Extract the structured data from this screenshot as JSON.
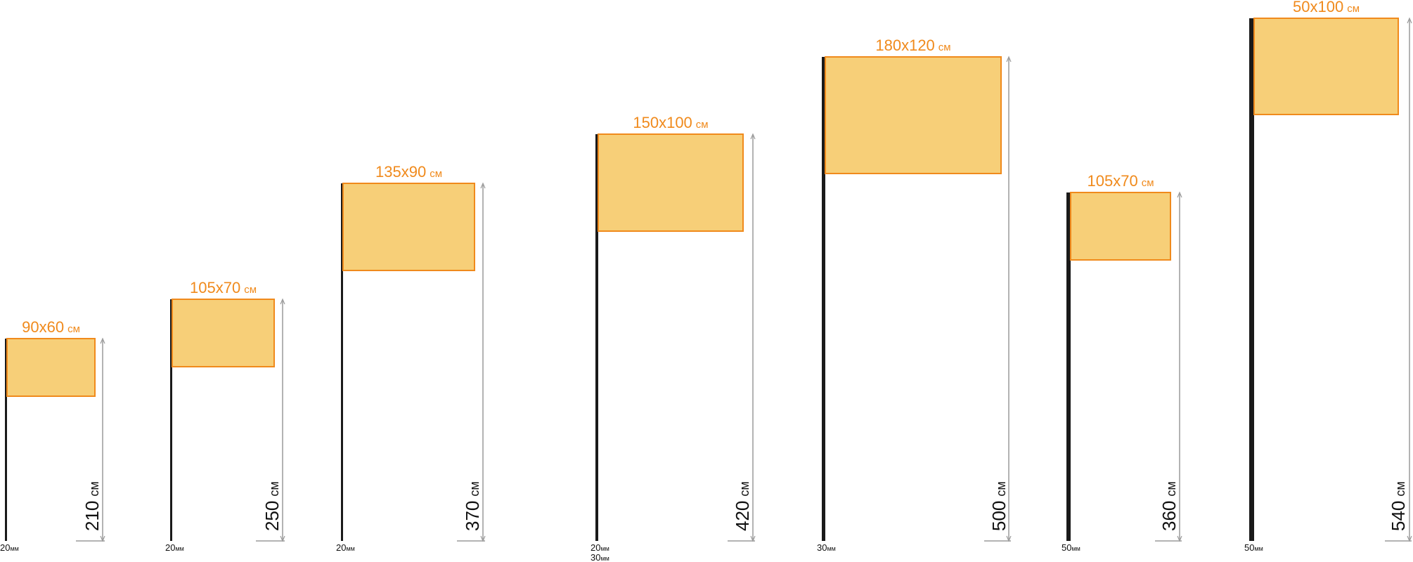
{
  "flags": [
    {
      "size": "90x60",
      "size_unit": "см",
      "height": "210",
      "height_unit": "см",
      "pole_diameter": [
        "20"
      ],
      "diameter_unit": "мм"
    },
    {
      "size": "105x70",
      "size_unit": "см",
      "height": "250",
      "height_unit": "см",
      "pole_diameter": [
        "20"
      ],
      "diameter_unit": "мм"
    },
    {
      "size": "135x90",
      "size_unit": "см",
      "height": "370",
      "height_unit": "см",
      "pole_diameter": [
        "20"
      ],
      "diameter_unit": "мм"
    },
    {
      "size": "150x100",
      "size_unit": "см",
      "height": "420",
      "height_unit": "см",
      "pole_diameter": [
        "20",
        "30"
      ],
      "diameter_unit": "мм"
    },
    {
      "size": "180x120",
      "size_unit": "см",
      "height": "500",
      "height_unit": "см",
      "pole_diameter": [
        "30"
      ],
      "diameter_unit": "мм"
    },
    {
      "size": "105x70",
      "size_unit": "см",
      "height": "360",
      "height_unit": "см",
      "pole_diameter": [
        "50"
      ],
      "diameter_unit": "мм"
    },
    {
      "size": "50x100",
      "size_unit": "см",
      "height": "540",
      "height_unit": "см",
      "pole_diameter": [
        "50"
      ],
      "diameter_unit": "мм"
    }
  ],
  "colors": {
    "flag_fill": "#f7cf78",
    "flag_stroke": "#f08a1c",
    "pole": "#1a1a1a",
    "dimension": "#9a9a9a"
  }
}
